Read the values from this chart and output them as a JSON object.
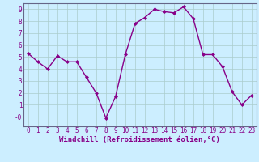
{
  "x": [
    0,
    1,
    2,
    3,
    4,
    5,
    6,
    7,
    8,
    9,
    10,
    11,
    12,
    13,
    14,
    15,
    16,
    17,
    18,
    19,
    20,
    21,
    22,
    23
  ],
  "y": [
    5.3,
    4.6,
    4.0,
    5.1,
    4.6,
    4.6,
    3.3,
    2.0,
    -0.1,
    1.7,
    5.2,
    7.8,
    8.3,
    9.0,
    8.8,
    8.7,
    9.2,
    8.2,
    5.2,
    5.2,
    4.2,
    2.1,
    1.0,
    1.8
  ],
  "line_color": "#880088",
  "marker": "D",
  "marker_size": 2.0,
  "background_color": "#cceeff",
  "grid_color": "#aacccc",
  "xlabel": "Windchill (Refroidissement éolien,°C)",
  "ylim": [
    -0.8,
    9.5
  ],
  "xlim": [
    -0.5,
    23.5
  ],
  "yticks": [
    0,
    1,
    2,
    3,
    4,
    5,
    6,
    7,
    8,
    9
  ],
  "ytick_labels": [
    "-0",
    "1",
    "2",
    "3",
    "4",
    "5",
    "6",
    "7",
    "8",
    "9"
  ],
  "xticks": [
    0,
    1,
    2,
    3,
    4,
    5,
    6,
    7,
    8,
    9,
    10,
    11,
    12,
    13,
    14,
    15,
    16,
    17,
    18,
    19,
    20,
    21,
    22,
    23
  ],
  "tick_fontsize": 5.5,
  "xlabel_fontsize": 6.5,
  "line_width": 1.0,
  "spine_color": "#666688"
}
